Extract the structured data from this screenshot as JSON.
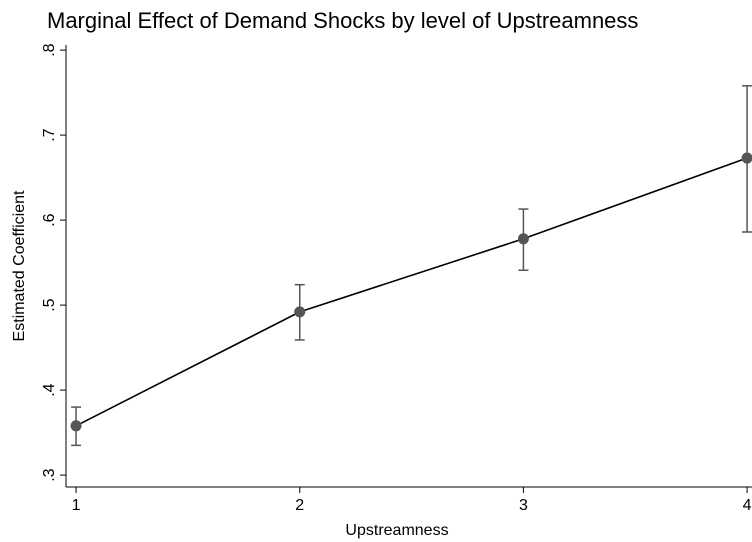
{
  "chart_data": {
    "type": "errorbar-line",
    "title": "Marginal Effect of Demand Shocks by level of Upstreamness",
    "x_label": "Upstreamness",
    "y_label": "Estimated Coefficient",
    "x": [
      1,
      2,
      3,
      4
    ],
    "series": [
      {
        "color": "#555555",
        "values": [
          0.358,
          0.492,
          0.578,
          0.673
        ],
        "lower": [
          0.335,
          0.459,
          0.541,
          0.586
        ],
        "upper": [
          0.38,
          0.524,
          0.613,
          0.758
        ]
      }
    ],
    "xlim": [
      0.955,
      4.022
    ],
    "xticks": [
      1,
      2,
      3,
      4
    ],
    "ylim": [
      0.286,
      0.806
    ],
    "yticks": [
      {
        "value": 0.3,
        "label": ".3"
      },
      {
        "value": 0.4,
        "label": ".4"
      },
      {
        "value": 0.5,
        "label": ".5"
      },
      {
        "value": 0.6,
        "label": ".6"
      },
      {
        "value": 0.7,
        "label": ".7"
      },
      {
        "value": 0.8,
        "label": ".8"
      }
    ],
    "grid": false
  }
}
